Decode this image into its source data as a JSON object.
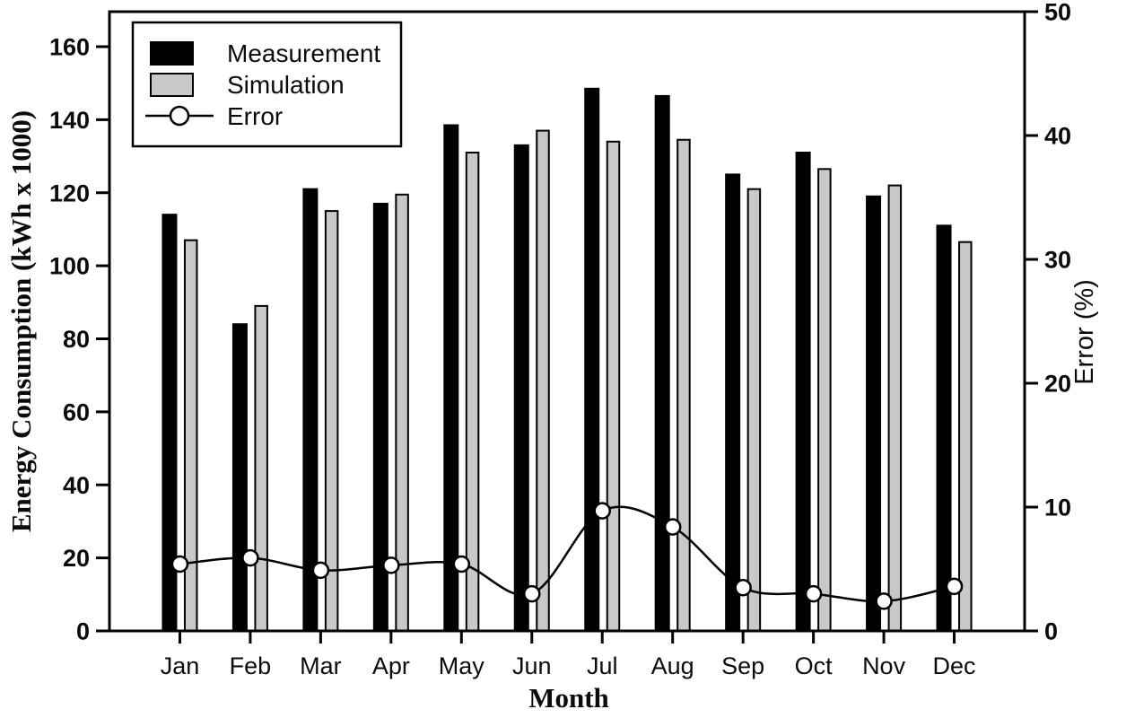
{
  "chart_data": {
    "type": "bar",
    "subtype": "grouped-bars-with-line-overlay",
    "title": "",
    "xlabel": "Month",
    "ylabel_left": "Energy Consumption (kWh x 1000)",
    "ylabel_right": "Error (%)",
    "categories": [
      "Jan",
      "Feb",
      "Mar",
      "Apr",
      "May",
      "Jun",
      "Jul",
      "Aug",
      "Sep",
      "Oct",
      "Nov",
      "Dec"
    ],
    "series": [
      {
        "name": "Measurement",
        "type": "bar",
        "axis": "left",
        "fill_color": "#000000",
        "stroke_color": "#000000",
        "values": [
          114,
          84,
          121,
          117,
          138.5,
          133,
          148.5,
          146.5,
          125,
          131,
          119,
          111
        ]
      },
      {
        "name": "Simulation",
        "type": "bar",
        "axis": "left",
        "fill_color": "#c8c8c8",
        "stroke_color": "#000000",
        "values": [
          107,
          89,
          115,
          119.5,
          131,
          137,
          134,
          134.5,
          121,
          126.5,
          122,
          106.5
        ]
      },
      {
        "name": "Error",
        "type": "line",
        "axis": "right",
        "line_color": "#000000",
        "marker": "open-circle",
        "marker_fill": "#ffffff",
        "values": [
          5.4,
          5.9,
          4.9,
          5.3,
          5.4,
          3.0,
          9.7,
          8.4,
          3.5,
          3.0,
          2.4,
          3.6
        ]
      }
    ],
    "ylim_left": [
      0,
      160
    ],
    "yticks_left": [
      0,
      20,
      40,
      60,
      80,
      100,
      120,
      140,
      160
    ],
    "ylim_right": [
      0,
      50
    ],
    "yticks_right": [
      0,
      10,
      20,
      30,
      40,
      50
    ],
    "grid": false,
    "legend_position": "top-left",
    "legend_entries": [
      "Measurement",
      "Simulation",
      "Error"
    ],
    "frame": true
  }
}
